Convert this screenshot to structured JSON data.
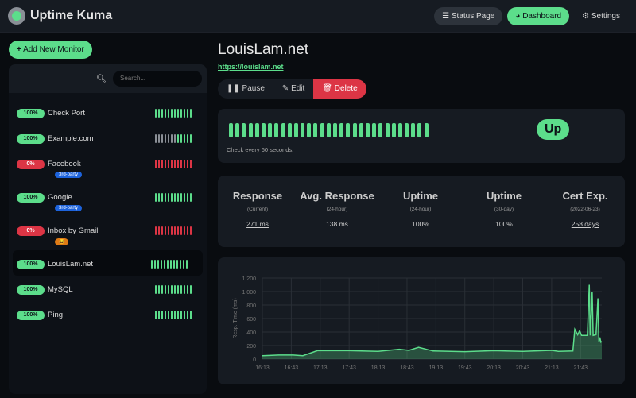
{
  "header": {
    "title": "Uptime Kuma",
    "nav": [
      {
        "label": "Status Page",
        "icon": "list-icon"
      },
      {
        "label": "Dashboard",
        "icon": "tachometer-icon"
      },
      {
        "label": "Settings",
        "icon": "gear-icon"
      }
    ]
  },
  "sidebar": {
    "add_label": "Add New Monitor",
    "search_placeholder": "Search...",
    "monitors": [
      {
        "name": "Check Port",
        "uptime": "100%",
        "status": "up",
        "beats": "gggggggggggg"
      },
      {
        "name": "Example.com",
        "uptime": "100%",
        "status": "up",
        "beats": "xxxxxxxggggg"
      },
      {
        "name": "Facebook",
        "uptime": "0%",
        "status": "down",
        "tag": "3rd-party",
        "beats": "rrrrrrrrrrrr"
      },
      {
        "name": "Google",
        "uptime": "100%",
        "status": "up",
        "tag": "3rd-party",
        "beats": "gggggggggggg"
      },
      {
        "name": "Inbox by Gmail",
        "uptime": "0%",
        "status": "down",
        "tag": "😂",
        "beats": "rrrrrrrrrrrr"
      },
      {
        "name": "LouisLam.net",
        "uptime": "100%",
        "status": "up",
        "selected": true,
        "beats": "gggggggggggg"
      },
      {
        "name": "MySQL",
        "uptime": "100%",
        "status": "up",
        "beats": "gggggggggggg"
      },
      {
        "name": "Ping",
        "uptime": "100%",
        "status": "up",
        "beats": "gggggggggggg"
      }
    ]
  },
  "colors": {
    "green": "#5cdd8b",
    "red": "#dc3545",
    "gray": "#8a8f96",
    "blue": "#1d63dc"
  },
  "monitor": {
    "title": "LouisLam.net",
    "url": "https://louislam.net",
    "pause": "Pause",
    "edit": "Edit",
    "delete": "Delete",
    "status": "Up",
    "check_text": "Check every 60 seconds.",
    "heartbeats": 31
  },
  "stats": [
    {
      "title": "Response",
      "sub": "(Current)",
      "value": "271 ms",
      "link": true
    },
    {
      "title": "Avg. Response",
      "sub": "(24-hour)",
      "value": "138 ms"
    },
    {
      "title": "Uptime",
      "sub": "(24-hour)",
      "value": "100%"
    },
    {
      "title": "Uptime",
      "sub": "(30-day)",
      "value": "100%"
    },
    {
      "title": "Cert Exp.",
      "sub": "(2022-06-23)",
      "value": "258 days",
      "link": true
    }
  ],
  "chart_data": {
    "type": "area",
    "ylabel": "Resp. Time (ms)",
    "ylim": [
      0,
      1200
    ],
    "yticks": [
      "0",
      "200",
      "400",
      "600",
      "800",
      "1,000",
      "1,200"
    ],
    "xticks": [
      "16:13",
      "16:43",
      "17:13",
      "17:43",
      "18:13",
      "18:43",
      "19:13",
      "19:43",
      "20:13",
      "20:43",
      "21:13",
      "21:43"
    ],
    "x": [
      "16:13",
      "16:30",
      "16:45",
      "16:55",
      "17:10",
      "17:43",
      "18:13",
      "18:35",
      "18:45",
      "18:55",
      "19:10",
      "19:43",
      "20:13",
      "20:43",
      "21:13",
      "21:20",
      "21:35",
      "21:37",
      "21:40",
      "21:42",
      "21:44",
      "21:50",
      "21:52",
      "21:53",
      "21:55",
      "21:56",
      "21:59",
      "22:01",
      "22:02",
      "22:03",
      "22:04",
      "22:05"
    ],
    "y": [
      50,
      60,
      60,
      50,
      125,
      125,
      115,
      145,
      130,
      175,
      120,
      110,
      125,
      115,
      130,
      115,
      120,
      440,
      360,
      420,
      350,
      350,
      1100,
      350,
      1000,
      350,
      360,
      900,
      260,
      320,
      250,
      260
    ]
  }
}
